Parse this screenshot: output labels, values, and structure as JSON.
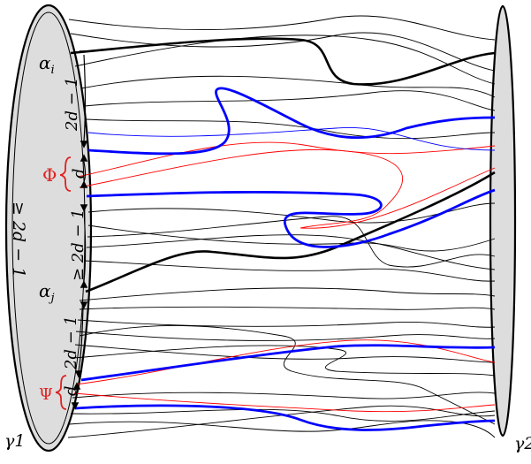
{
  "figure": {
    "left_tube": {
      "label": "γ1"
    },
    "right_tube": {
      "label": "γ2"
    },
    "boundary_labels": {
      "alpha_i": "α",
      "alpha_i_sub": "i",
      "alpha_j": "α",
      "alpha_j_sub": "j",
      "gap_upper": "2d − 1",
      "gap_phi": "d",
      "gap_middle": "≥ 2d − 1",
      "gap_lower": "2d − 1",
      "gap_psi": "d",
      "outer_bound": "≥ 2d − 1"
    },
    "highlighted_sets": {
      "phi": "Φ",
      "psi": "Ψ"
    },
    "colors": {
      "tube_fill": "#dddddd",
      "strand": "#000000",
      "phi_strand": "#ff0000",
      "psi_strand": "#0000ff",
      "label_red": "#e02020"
    }
  }
}
